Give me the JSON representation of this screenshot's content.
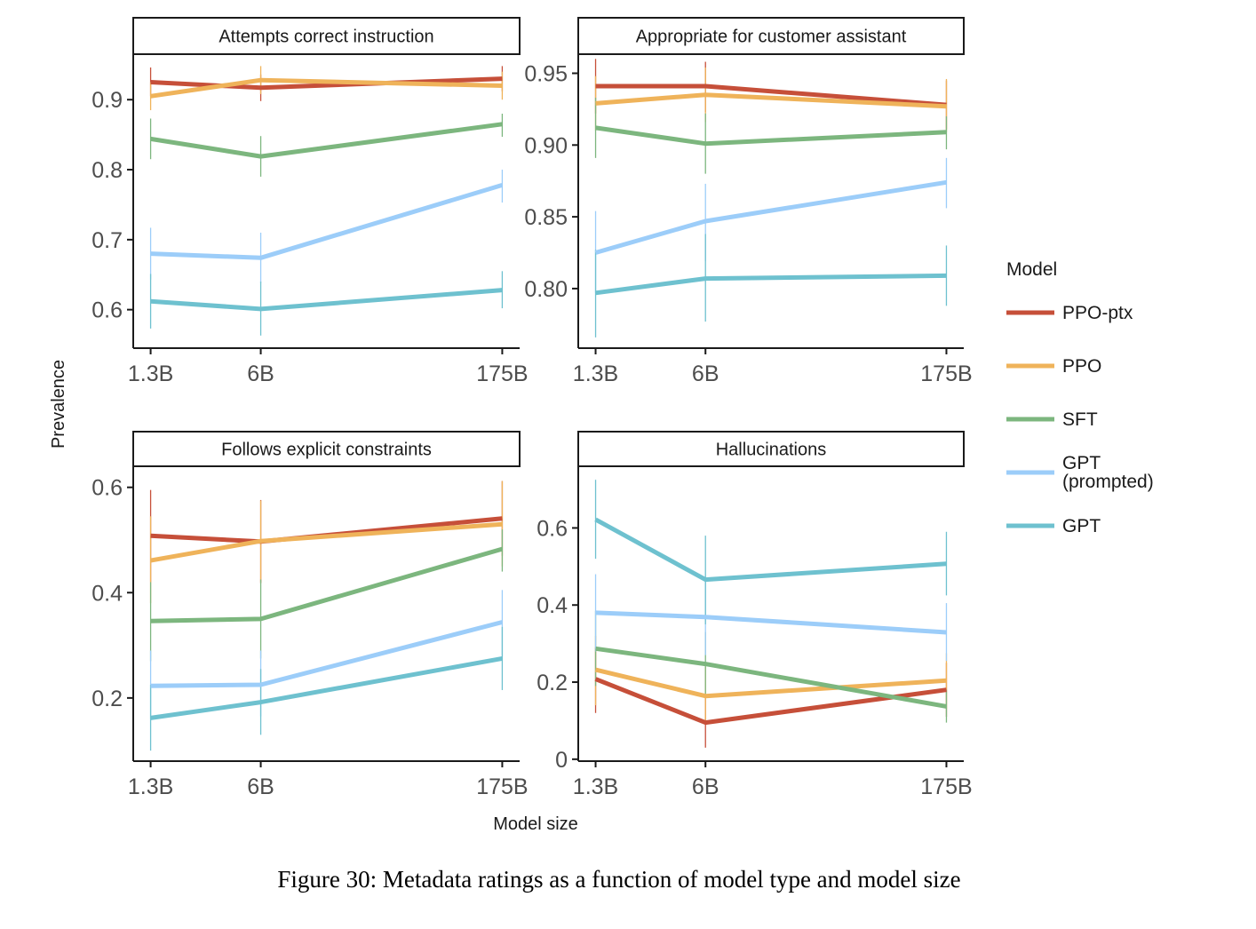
{
  "caption": "Figure 30: Metadata ratings as a function of model type and model size",
  "axes": {
    "xlabel": "Model size",
    "ylabel": "Prevalence"
  },
  "legend": {
    "title": "Model",
    "items": [
      {
        "label": "PPO-ptx",
        "color": "#C64F39"
      },
      {
        "label": "PPO",
        "color": "#EFB35A"
      },
      {
        "label": "SFT",
        "color": "#7CB67E"
      },
      {
        "label": "GPT\n(prompted)",
        "color": "#9CCDF9"
      },
      {
        "label": "GPT",
        "color": "#6EC1CF"
      }
    ]
  },
  "chart_data": [
    {
      "type": "line",
      "title": "Attempts correct instruction",
      "x": [
        "1.3B",
        "6B",
        "175B"
      ],
      "yticks": [
        "0.6",
        "0.7",
        "0.8",
        "0.9"
      ],
      "ylim": [
        0.545,
        0.965
      ],
      "series": [
        {
          "name": "PPO-ptx",
          "values": [
            0.925,
            0.917,
            0.93
          ],
          "err_low": [
            0.905,
            0.898,
            0.912
          ],
          "err_high": [
            0.946,
            0.936,
            0.948
          ]
        },
        {
          "name": "PPO",
          "values": [
            0.905,
            0.928,
            0.92
          ],
          "err_low": [
            0.885,
            0.908,
            0.9
          ],
          "err_high": [
            0.925,
            0.948,
            0.94
          ]
        },
        {
          "name": "SFT",
          "values": [
            0.844,
            0.819,
            0.865
          ],
          "err_low": [
            0.815,
            0.79,
            0.847
          ],
          "err_high": [
            0.873,
            0.848,
            0.88
          ]
        },
        {
          "name": "GPT\n(prompted)",
          "values": [
            0.68,
            0.674,
            0.778
          ],
          "err_low": [
            0.643,
            0.638,
            0.753
          ],
          "err_high": [
            0.717,
            0.71,
            0.8
          ]
        },
        {
          "name": "GPT",
          "values": [
            0.612,
            0.601,
            0.628
          ],
          "err_low": [
            0.573,
            0.563,
            0.602
          ],
          "err_high": [
            0.651,
            0.64,
            0.655
          ]
        }
      ]
    },
    {
      "type": "line",
      "title": "Appropriate for customer assistant",
      "x": [
        "1.3B",
        "6B",
        "175B"
      ],
      "yticks": [
        "0.80",
        "0.85",
        "0.90",
        "0.95"
      ],
      "ylim": [
        0.7585,
        0.9633
      ],
      "series": [
        {
          "name": "PPO-ptx",
          "values": [
            0.941,
            0.941,
            0.928
          ],
          "err_low": [
            0.922,
            0.923,
            0.911
          ],
          "err_high": [
            0.96,
            0.958,
            0.945
          ]
        },
        {
          "name": "PPO",
          "values": [
            0.929,
            0.935,
            0.927
          ],
          "err_low": [
            0.91,
            0.916,
            0.909
          ],
          "err_high": [
            0.948,
            0.954,
            0.946
          ]
        },
        {
          "name": "SFT",
          "values": [
            0.912,
            0.901,
            0.909
          ],
          "err_low": [
            0.891,
            0.88,
            0.897
          ],
          "err_high": [
            0.933,
            0.922,
            0.92
          ]
        },
        {
          "name": "GPT\n(prompted)",
          "values": [
            0.825,
            0.847,
            0.874
          ],
          "err_low": [
            0.797,
            0.819,
            0.856
          ],
          "err_high": [
            0.854,
            0.873,
            0.891
          ]
        },
        {
          "name": "GPT",
          "values": [
            0.797,
            0.807,
            0.809
          ],
          "err_low": [
            0.766,
            0.777,
            0.788
          ],
          "err_high": [
            0.827,
            0.838,
            0.83
          ]
        }
      ]
    },
    {
      "type": "line",
      "title": "Follows explicit constraints",
      "x": [
        "1.3B",
        "6B",
        "175B"
      ],
      "yticks": [
        "0.2",
        "0.4",
        "0.6"
      ],
      "ylim": [
        0.08,
        0.64
      ],
      "series": [
        {
          "name": "PPO-ptx",
          "values": [
            0.508,
            0.497,
            0.541
          ],
          "err_low": [
            0.42,
            0.418,
            0.47
          ],
          "err_high": [
            0.595,
            0.576,
            0.612
          ]
        },
        {
          "name": "PPO",
          "values": [
            0.461,
            0.498,
            0.53
          ],
          "err_low": [
            0.38,
            0.42,
            0.45
          ],
          "err_high": [
            0.545,
            0.575,
            0.612
          ]
        },
        {
          "name": "SFT",
          "values": [
            0.346,
            0.35,
            0.483
          ],
          "err_low": [
            0.27,
            0.275,
            0.44
          ],
          "err_high": [
            0.42,
            0.425,
            0.52
          ]
        },
        {
          "name": "GPT\n(prompted)",
          "values": [
            0.223,
            0.225,
            0.344
          ],
          "err_low": [
            0.16,
            0.165,
            0.28
          ],
          "err_high": [
            0.29,
            0.29,
            0.405
          ]
        },
        {
          "name": "GPT",
          "values": [
            0.162,
            0.192,
            0.275
          ],
          "err_low": [
            0.1,
            0.13,
            0.215
          ],
          "err_high": [
            0.225,
            0.255,
            0.335
          ]
        }
      ]
    },
    {
      "type": "line",
      "title": "Hallucinations",
      "x": [
        "1.3B",
        "6B",
        "175B"
      ],
      "yticks": [
        "0",
        "0.2",
        "0.4",
        "0.6"
      ],
      "ylim": [
        -0.005,
        0.76
      ],
      "series": [
        {
          "name": "PPO-ptx",
          "values": [
            0.208,
            0.095,
            0.18
          ],
          "err_low": [
            0.12,
            0.03,
            0.11
          ],
          "err_high": [
            0.29,
            0.16,
            0.25
          ]
        },
        {
          "name": "PPO",
          "values": [
            0.232,
            0.164,
            0.204
          ],
          "err_low": [
            0.14,
            0.09,
            0.13
          ],
          "err_high": [
            0.32,
            0.24,
            0.275
          ]
        },
        {
          "name": "SFT",
          "values": [
            0.287,
            0.247,
            0.137
          ],
          "err_low": [
            0.19,
            0.16,
            0.095
          ],
          "err_high": [
            0.385,
            0.33,
            0.18
          ]
        },
        {
          "name": "GPT\n(prompted)",
          "values": [
            0.38,
            0.369,
            0.329
          ],
          "err_low": [
            0.28,
            0.27,
            0.255
          ],
          "err_high": [
            0.48,
            0.47,
            0.405
          ]
        },
        {
          "name": "GPT",
          "values": [
            0.622,
            0.466,
            0.507
          ],
          "err_low": [
            0.52,
            0.35,
            0.425
          ],
          "err_high": [
            0.725,
            0.58,
            0.59
          ]
        }
      ]
    }
  ]
}
